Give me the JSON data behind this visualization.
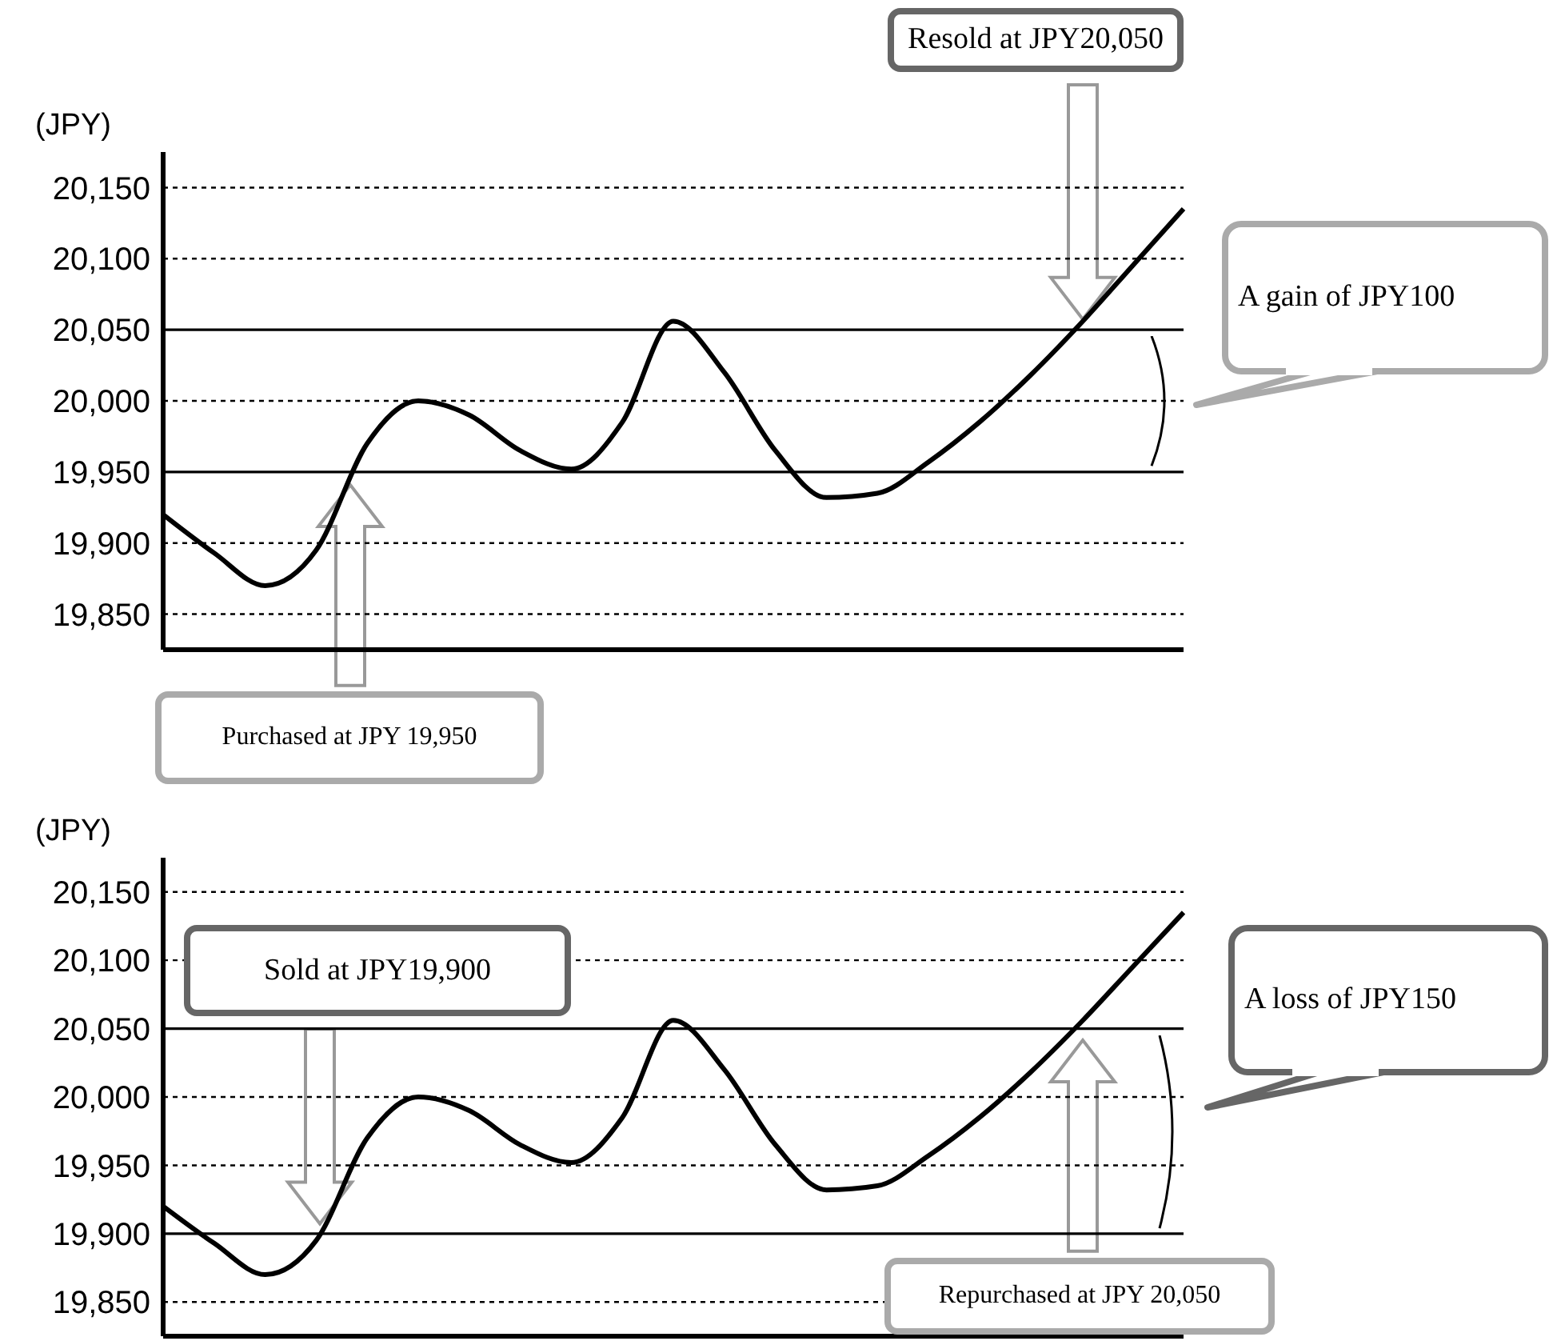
{
  "chart_data": [
    {
      "type": "line",
      "ylabel": "(JPY)",
      "categories": [
        null,
        null,
        null,
        null,
        null,
        null,
        null,
        null,
        null,
        null,
        null,
        null,
        null,
        null,
        null,
        null,
        null,
        null,
        null,
        null,
        null
      ],
      "series": [
        {
          "color": "#000000",
          "values": [
            19920,
            19893,
            19870,
            19895,
            19970,
            20000,
            19990,
            19965,
            19952,
            19985,
            20056,
            20020,
            19965,
            19932,
            19935,
            19957,
            19985,
            20018,
            20055,
            20095,
            20135
          ]
        }
      ],
      "ylim": [
        19825,
        20175
      ],
      "yticks": [
        {
          "value": 19850,
          "label": "19,850"
        },
        {
          "value": 19900,
          "label": "19,900"
        },
        {
          "value": 19950,
          "label": "19,950"
        },
        {
          "value": 20000,
          "label": "20,000"
        },
        {
          "value": 20050,
          "label": "20,050"
        },
        {
          "value": 20100,
          "label": "20,100"
        },
        {
          "value": 20150,
          "label": "20,150"
        }
      ],
      "tick_labels": "y",
      "ref_lines": [
        {
          "axis": "y",
          "value": 19950,
          "color": "#000000",
          "line_style": "solid"
        },
        {
          "axis": "y",
          "value": 20050,
          "color": "#000000",
          "line_style": "solid"
        },
        {
          "axis": "y",
          "value": 19850,
          "color": "#000000",
          "line_style": "dotted"
        },
        {
          "axis": "y",
          "value": 19900,
          "color": "#000000",
          "line_style": "dotted"
        },
        {
          "axis": "y",
          "value": 20000,
          "color": "#000000",
          "line_style": "dotted"
        },
        {
          "axis": "y",
          "value": 20100,
          "color": "#000000",
          "line_style": "dotted"
        },
        {
          "axis": "y",
          "value": 20150,
          "color": "#000000",
          "line_style": "dotted"
        }
      ],
      "annotations": [
        "Resold at JPY20,050",
        "Purchased at JPY 19,950",
        "A gain of JPY100"
      ]
    },
    {
      "type": "line",
      "ylabel": "(JPY)",
      "categories": [
        null,
        null,
        null,
        null,
        null,
        null,
        null,
        null,
        null,
        null,
        null,
        null,
        null,
        null,
        null,
        null,
        null,
        null,
        null,
        null,
        null
      ],
      "series": [
        {
          "color": "#000000",
          "values": [
            19920,
            19893,
            19870,
            19895,
            19970,
            20000,
            19990,
            19965,
            19952,
            19985,
            20056,
            20020,
            19965,
            19932,
            19935,
            19957,
            19985,
            20018,
            20055,
            20095,
            20135
          ]
        }
      ],
      "ylim": [
        19825,
        20175
      ],
      "yticks": [
        {
          "value": 19850,
          "label": "19,850"
        },
        {
          "value": 19900,
          "label": "19,900"
        },
        {
          "value": 19950,
          "label": "19,950"
        },
        {
          "value": 20000,
          "label": "20,000"
        },
        {
          "value": 20050,
          "label": "20,050"
        },
        {
          "value": 20100,
          "label": "20,100"
        },
        {
          "value": 20150,
          "label": "20,150"
        }
      ],
      "tick_labels": "y",
      "ref_lines": [
        {
          "axis": "y",
          "value": 20050,
          "color": "#000000",
          "line_style": "solid"
        },
        {
          "axis": "y",
          "value": 19900,
          "color": "#000000",
          "line_style": "solid"
        },
        {
          "axis": "y",
          "value": 19850,
          "color": "#000000",
          "line_style": "dotted"
        },
        {
          "axis": "y",
          "value": 19950,
          "color": "#000000",
          "line_style": "dotted"
        },
        {
          "axis": "y",
          "value": 20000,
          "color": "#000000",
          "line_style": "dotted"
        },
        {
          "axis": "y",
          "value": 20100,
          "color": "#000000",
          "line_style": "dotted"
        },
        {
          "axis": "y",
          "value": 20150,
          "color": "#000000",
          "line_style": "dotted"
        }
      ],
      "annotations": [
        "Sold at JPY19,900",
        "Repurchased at JPY 20,050",
        "A loss of JPY150"
      ]
    }
  ]
}
